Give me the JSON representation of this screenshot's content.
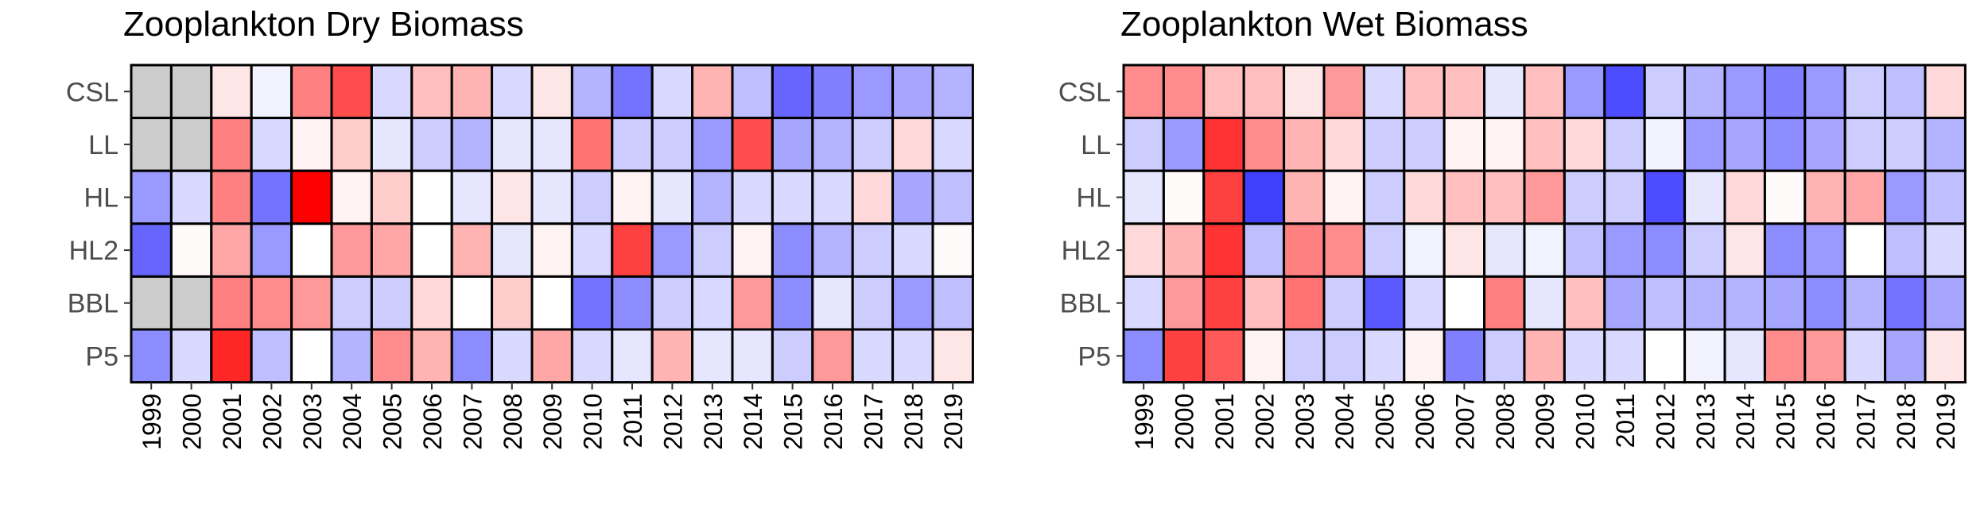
{
  "chart_data": [
    {
      "type": "heatmap",
      "title": "Zooplankton Dry Biomass",
      "xlabel": "",
      "ylabel": "",
      "x": [
        "1999",
        "2000",
        "2001",
        "2002",
        "2003",
        "2004",
        "2005",
        "2006",
        "2007",
        "2008",
        "2009",
        "2010",
        "2011",
        "2012",
        "2013",
        "2014",
        "2015",
        "2016",
        "2017",
        "2018",
        "2019"
      ],
      "y": [
        "CSL",
        "LL",
        "HL",
        "HL2",
        "BBL",
        "P5"
      ],
      "values": [
        [
          null,
          null,
          0.1,
          -0.05,
          0.5,
          0.7,
          -0.15,
          0.25,
          0.3,
          -0.15,
          0.1,
          -0.3,
          -0.55,
          -0.15,
          0.3,
          -0.25,
          -0.6,
          -0.5,
          -0.4,
          -0.35,
          -0.3
        ],
        [
          null,
          null,
          0.5,
          -0.15,
          0.05,
          0.2,
          -0.1,
          -0.2,
          -0.3,
          -0.1,
          -0.1,
          0.55,
          -0.2,
          -0.2,
          -0.4,
          0.7,
          -0.35,
          -0.3,
          -0.2,
          0.15,
          -0.15
        ],
        [
          -0.4,
          -0.15,
          0.5,
          -0.55,
          1.0,
          0.05,
          0.2,
          0.0,
          -0.1,
          0.1,
          -0.1,
          -0.2,
          0.05,
          -0.1,
          -0.3,
          -0.15,
          -0.15,
          -0.15,
          0.15,
          -0.35,
          -0.25
        ],
        [
          -0.6,
          0.02,
          0.35,
          -0.4,
          0.0,
          0.4,
          0.35,
          0.0,
          0.3,
          -0.1,
          0.05,
          -0.15,
          0.75,
          -0.4,
          -0.2,
          0.05,
          -0.45,
          -0.3,
          -0.2,
          -0.15,
          0.02
        ],
        [
          null,
          null,
          0.5,
          0.45,
          0.4,
          -0.2,
          -0.2,
          0.15,
          0.0,
          0.2,
          0.0,
          -0.55,
          -0.45,
          -0.2,
          -0.15,
          0.4,
          -0.45,
          -0.1,
          -0.2,
          -0.4,
          -0.25
        ],
        [
          -0.45,
          -0.15,
          0.85,
          -0.25,
          0.0,
          -0.3,
          0.45,
          0.3,
          -0.45,
          -0.15,
          0.35,
          -0.15,
          -0.1,
          0.3,
          -0.1,
          -0.1,
          -0.2,
          0.4,
          -0.15,
          -0.15,
          0.1
        ]
      ],
      "color_low": "#0000ff",
      "color_mid": "#ffffff",
      "color_high": "#ff0000",
      "missing_color": "#cccccc",
      "grid": false,
      "legend": "none"
    },
    {
      "type": "heatmap",
      "title": "Zooplankton Wet Biomass",
      "xlabel": "",
      "ylabel": "",
      "x": [
        "1999",
        "2000",
        "2001",
        "2002",
        "2003",
        "2004",
        "2005",
        "2006",
        "2007",
        "2008",
        "2009",
        "2010",
        "2011",
        "2012",
        "2013",
        "2014",
        "2015",
        "2016",
        "2017",
        "2018",
        "2019"
      ],
      "y": [
        "CSL",
        "LL",
        "HL",
        "HL2",
        "BBL",
        "P5"
      ],
      "values": [
        [
          0.45,
          0.45,
          0.25,
          0.25,
          0.1,
          0.4,
          -0.15,
          0.25,
          0.25,
          -0.1,
          0.25,
          -0.4,
          -0.7,
          -0.2,
          -0.3,
          -0.4,
          -0.5,
          -0.4,
          -0.2,
          -0.25,
          0.15
        ],
        [
          -0.2,
          -0.4,
          0.8,
          0.45,
          0.3,
          0.15,
          -0.2,
          -0.2,
          0.05,
          0.05,
          0.25,
          0.15,
          -0.2,
          -0.05,
          -0.4,
          -0.35,
          -0.45,
          -0.35,
          -0.2,
          -0.2,
          -0.3
        ],
        [
          -0.1,
          0.02,
          0.75,
          -0.75,
          0.3,
          0.05,
          -0.2,
          0.15,
          0.25,
          0.25,
          0.4,
          -0.2,
          -0.2,
          -0.7,
          -0.1,
          0.15,
          0.02,
          0.3,
          0.35,
          -0.4,
          -0.25
        ],
        [
          0.15,
          0.3,
          0.8,
          -0.25,
          0.5,
          0.45,
          -0.2,
          -0.05,
          0.1,
          -0.1,
          -0.05,
          -0.25,
          -0.4,
          -0.45,
          -0.2,
          0.1,
          -0.45,
          -0.4,
          0.0,
          -0.25,
          -0.15
        ],
        [
          -0.15,
          0.4,
          0.75,
          0.25,
          0.55,
          -0.2,
          -0.65,
          -0.15,
          0.0,
          0.5,
          -0.1,
          0.25,
          -0.35,
          -0.25,
          -0.3,
          -0.3,
          -0.35,
          -0.45,
          -0.3,
          -0.55,
          -0.35
        ],
        [
          -0.45,
          0.75,
          0.65,
          0.05,
          -0.2,
          -0.2,
          -0.15,
          0.05,
          -0.5,
          -0.2,
          0.3,
          -0.15,
          -0.15,
          0.0,
          -0.05,
          -0.1,
          0.45,
          0.4,
          -0.15,
          -0.35,
          0.1
        ]
      ],
      "color_low": "#0000ff",
      "color_mid": "#ffffff",
      "color_high": "#ff0000",
      "missing_color": "#cccccc",
      "grid": false,
      "legend": "none"
    }
  ]
}
